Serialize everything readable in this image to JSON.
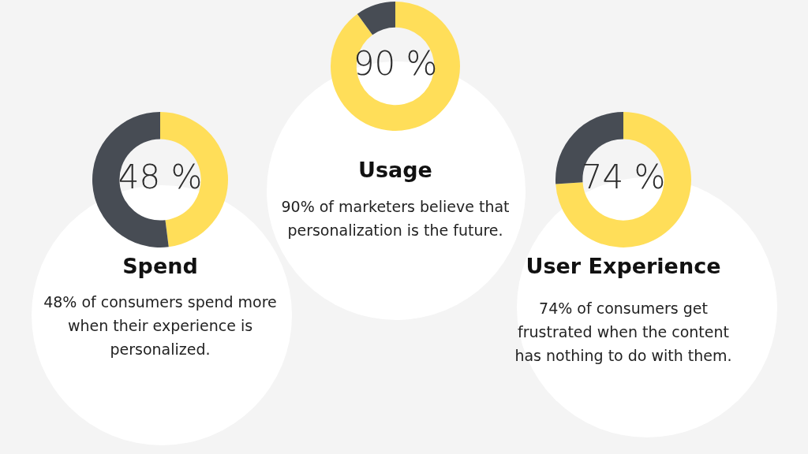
{
  "chart_data": [
    {
      "type": "donut",
      "title": "Spend",
      "subtitle": "48% of consumers spend more when their experience is personalized.",
      "categories": [
        null,
        null
      ],
      "values": [
        48,
        52
      ],
      "colors": [
        "#ffde59",
        "#474c54"
      ],
      "value_labels": [
        "48 %",
        null
      ],
      "legend": false
    },
    {
      "type": "donut",
      "title": "Usage",
      "subtitle": "90% of marketers believe that personalization is the future.",
      "categories": [
        null,
        null
      ],
      "values": [
        90,
        10
      ],
      "colors": [
        "#ffde59",
        "#474c54"
      ],
      "value_labels": [
        "90 %",
        null
      ],
      "legend": false
    },
    {
      "type": "donut",
      "title": "User Experience",
      "subtitle": "74% of consumers get frustrated when the content has nothing to do with them.",
      "categories": [
        null,
        null
      ],
      "values": [
        74,
        26
      ],
      "colors": [
        "#ffde59",
        "#474c54"
      ],
      "value_labels": [
        "74 %",
        null
      ],
      "legend": false
    }
  ]
}
